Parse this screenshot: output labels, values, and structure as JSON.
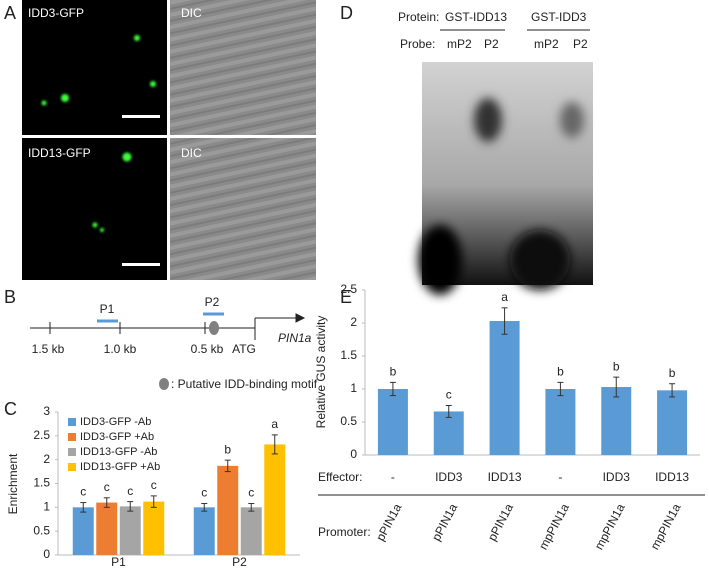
{
  "panel_a": {
    "label": "A",
    "images": [
      {
        "label": "IDD3-GFP"
      },
      {
        "label": "DIC"
      },
      {
        "label": "IDD13-GFP"
      },
      {
        "label": "DIC"
      }
    ]
  },
  "panel_b": {
    "label": "B",
    "positions": [
      "1.5 kb",
      "1.0 kb",
      "0.5 kb",
      "ATG"
    ],
    "primers": [
      "P1",
      "P2"
    ],
    "gene": "PIN1a",
    "legend": ": Putative IDD-binding motif"
  },
  "panel_d": {
    "label": "D",
    "protein_label": "Protein:",
    "proteins": [
      "GST-IDD13",
      "GST-IDD3"
    ],
    "probe_label": "Probe:",
    "probes": [
      "mP2",
      "P2",
      "mP2",
      "P2"
    ]
  },
  "chart_data": [
    {
      "type": "bar",
      "panel": "C",
      "ylabel": "Enrichment",
      "categories": [
        "P1",
        "P2"
      ],
      "series": [
        {
          "name": "IDD3-GFP -Ab",
          "color": "#5b9bd5",
          "values": [
            1.0,
            1.0
          ],
          "errors": [
            0.1,
            0.08
          ],
          "letters": [
            "c",
            "c"
          ]
        },
        {
          "name": "IDD3-GFP +Ab",
          "color": "#ed7d31",
          "values": [
            1.1,
            1.87
          ],
          "errors": [
            0.1,
            0.12
          ],
          "letters": [
            "c",
            "b"
          ]
        },
        {
          "name": "IDD13-GFP -Ab",
          "color": "#a5a5a5",
          "values": [
            1.02,
            1.0
          ],
          "errors": [
            0.1,
            0.08
          ],
          "letters": [
            "c",
            "c"
          ]
        },
        {
          "name": "IDD13-GFP +Ab",
          "color": "#ffc000",
          "values": [
            1.12,
            2.32
          ],
          "errors": [
            0.12,
            0.2
          ],
          "letters": [
            "c",
            "a"
          ]
        }
      ],
      "ylim": [
        0,
        3
      ],
      "yticks": [
        0,
        0.5,
        1,
        1.5,
        2,
        2.5,
        3
      ],
      "legend": "upper left",
      "grid": false
    },
    {
      "type": "bar",
      "panel": "E",
      "ylabel": "Relative GUS activity",
      "color": "#5b9bd5",
      "categories": [
        "pPIN1a",
        "pPIN1a",
        "pPIN1a",
        "mpPIN1a",
        "mpPIN1a",
        "mpPIN1a"
      ],
      "effector_label": "Effector:",
      "effectors": [
        "-",
        "IDD3",
        "IDD13",
        "-",
        "IDD3",
        "IDD13"
      ],
      "promoter_label": "Promoter:",
      "values": [
        1.0,
        0.66,
        2.03,
        1.0,
        1.03,
        0.98
      ],
      "errors": [
        0.1,
        0.09,
        0.2,
        0.1,
        0.15,
        0.1
      ],
      "letters": [
        "b",
        "c",
        "a",
        "b",
        "b",
        "b"
      ],
      "ylim": [
        0,
        2.5
      ],
      "yticks": [
        0,
        0.5,
        1,
        1.5,
        2,
        2.5
      ],
      "grid": false
    }
  ]
}
